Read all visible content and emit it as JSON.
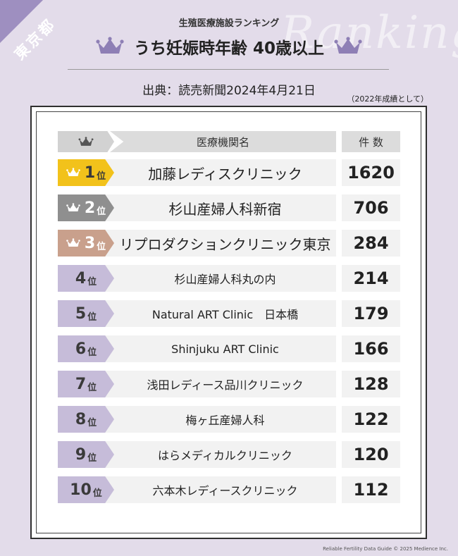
{
  "badge": {
    "prefecture": "東京都"
  },
  "watermark": {
    "text": "Ranking"
  },
  "header": {
    "subtitle": "生殖医療施設ランキング",
    "title": "うち妊娠時年齢 40歳以上",
    "source": "出典：読売新聞2024年4月21日",
    "note": "（2022年成績として）"
  },
  "table": {
    "col_name": "医療機関名",
    "col_count": "件 数",
    "rank_suffix": "位"
  },
  "chart_data": {
    "type": "table",
    "columns": [
      "順位",
      "医療機関名",
      "件数"
    ],
    "rows": [
      {
        "rank": "1",
        "name": "加藤レディスクリニック",
        "count": "1620"
      },
      {
        "rank": "2",
        "name": "杉山産婦人科新宿",
        "count": "706"
      },
      {
        "rank": "3",
        "name": "リプロダクションクリニック東京",
        "count": "284"
      },
      {
        "rank": "4",
        "name": "杉山産婦人科丸の内",
        "count": "214"
      },
      {
        "rank": "5",
        "name": "Natural ART Clinic　日本橋",
        "count": "179"
      },
      {
        "rank": "6",
        "name": "Shinjuku ART Clinic",
        "count": "166"
      },
      {
        "rank": "7",
        "name": "浅田レディース品川クリニック",
        "count": "128"
      },
      {
        "rank": "8",
        "name": "梅ヶ丘産婦人科",
        "count": "122"
      },
      {
        "rank": "9",
        "name": "はらメディカルクリニック",
        "count": "120"
      },
      {
        "rank": "10",
        "name": "六本木レディースクリニック",
        "count": "112"
      }
    ]
  },
  "colors": {
    "background": "#e3dcea",
    "badge": "#9e8fc0",
    "gold": "#f2c21b",
    "silver": "#8f8f8f",
    "bronze": "#c9a08c",
    "lavender": "#c6bcd9",
    "crown": "#8e7fb5"
  },
  "icons": {
    "title_crown": "crown-icon",
    "rank_crown": "crown-icon"
  },
  "footer": {
    "credit": "Reliable Fertility Data Guide © 2025 Medience Inc."
  }
}
